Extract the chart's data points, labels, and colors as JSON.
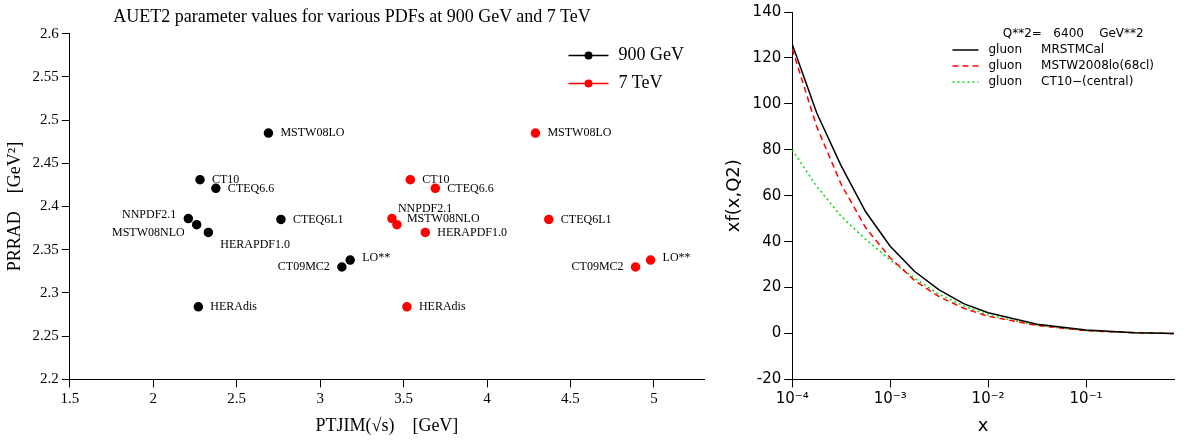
{
  "chart_data": [
    {
      "type": "scatter",
      "title": "AUET2 parameter values for various PDFs at 900 GeV and 7 TeV",
      "xlabel": "PTJIM(√s)    [GeV]",
      "ylabel": "PRRAD    [GeV²]",
      "xlim": [
        1.5,
        5.3
      ],
      "xticks": [
        1.5,
        2,
        2.5,
        3,
        3.5,
        4,
        4.5,
        5
      ],
      "ylim": [
        2.2,
        2.6
      ],
      "yticks": [
        2.2,
        2.25,
        2.3,
        2.35,
        2.4,
        2.45,
        2.5,
        2.55,
        2.6
      ],
      "legend": "top right",
      "marker": "circle",
      "series": [
        {
          "name": "900 GeV",
          "color": "#000000",
          "x": [
            2.69,
            2.28,
            2.375,
            2.21,
            2.26,
            2.33,
            2.765,
            3.18,
            3.13,
            2.27
          ],
          "values": [
            2.485,
            2.431,
            2.421,
            2.386,
            2.379,
            2.37,
            2.385,
            2.338,
            2.33,
            2.284
          ]
        },
        {
          "name": "7 TeV",
          "color": "#ff0000",
          "x": [
            4.29,
            3.54,
            3.69,
            3.43,
            3.46,
            3.63,
            4.37,
            4.98,
            4.89,
            3.52
          ],
          "values": [
            2.485,
            2.431,
            2.421,
            2.386,
            2.379,
            2.37,
            2.385,
            2.338,
            2.33,
            2.284
          ]
        }
      ],
      "annotations": [
        {
          "text": "MSTW08LO",
          "x": 2.69,
          "y": 2.485
        },
        {
          "text": "CT10",
          "x": 2.28,
          "y": 2.431
        },
        {
          "text": "CTEQ6.6",
          "x": 2.375,
          "y": 2.421
        },
        {
          "text": "NNPDF2.1",
          "x": 2.21,
          "y": 2.386
        },
        {
          "text": "MSTW08NLO",
          "x": 2.26,
          "y": 2.379
        },
        {
          "text": "HERAPDF1.0",
          "x": 2.33,
          "y": 2.37
        },
        {
          "text": "CTEQ6L1",
          "x": 2.765,
          "y": 2.385
        },
        {
          "text": "LO**",
          "x": 3.18,
          "y": 2.338
        },
        {
          "text": "CT09MC2",
          "x": 3.13,
          "y": 2.33
        },
        {
          "text": "HERAdis",
          "x": 2.27,
          "y": 2.284
        },
        {
          "text": "MSTW08LO",
          "x": 4.29,
          "y": 2.485
        },
        {
          "text": "CT10",
          "x": 3.54,
          "y": 2.431
        },
        {
          "text": "CTEQ6.6",
          "x": 3.69,
          "y": 2.421
        },
        {
          "text": "NNPDF2.1",
          "x": 3.43,
          "y": 2.386
        },
        {
          "text": "MSTW08NLO",
          "x": 3.46,
          "y": 2.379
        },
        {
          "text": "HERAPDF1.0",
          "x": 3.63,
          "y": 2.37
        },
        {
          "text": "CTEQ6L1",
          "x": 4.37,
          "y": 2.385
        },
        {
          "text": "LO**",
          "x": 4.98,
          "y": 2.338
        },
        {
          "text": "CT09MC2",
          "x": 4.89,
          "y": 2.33
        },
        {
          "text": "HERAdis",
          "x": 3.52,
          "y": 2.284
        }
      ]
    },
    {
      "type": "line",
      "xlabel": "x",
      "ylabel": "xf(x,Q2)",
      "log": "x",
      "marker": "none",
      "legend": "top right",
      "legend_title": "Q**2=   6400    GeV**2",
      "xlim": [
        0.0001,
        0.79
      ],
      "xticks": [
        {
          "value": 0.0001,
          "label": "10⁻⁴"
        },
        {
          "value": 0.001,
          "label": "10⁻³"
        },
        {
          "value": 0.01,
          "label": "10⁻²"
        },
        {
          "value": 0.1,
          "label": "10⁻¹"
        }
      ],
      "ylim": [
        -20,
        140
      ],
      "yticks": [
        -20,
        0,
        20,
        40,
        60,
        80,
        100,
        120,
        140
      ],
      "x": [
        0.0001,
        0.000178,
        0.000316,
        0.000562,
        0.001,
        0.00178,
        0.00316,
        0.00562,
        0.01,
        0.0316,
        0.1,
        0.316,
        0.79
      ],
      "series": [
        {
          "name": "gluon     MRSTMCal",
          "color": "#000000",
          "line_style": "solid",
          "values": [
            126,
            96,
            73,
            53,
            38,
            27,
            19,
            13,
            9,
            4,
            1.5,
            0.3,
            0
          ]
        },
        {
          "name": "gluon     MSTW2008lo(68cl)",
          "color": "#ff0000",
          "line_style": "dashed",
          "values": [
            124,
            90,
            65,
            46,
            33,
            23,
            16,
            11,
            7.5,
            3.5,
            1.2,
            0.3,
            0
          ]
        },
        {
          "name": "gluon     CT10−(central)",
          "color": "#00dd00",
          "line_style": "dotted",
          "values": [
            80,
            64,
            51,
            41,
            32,
            24,
            17,
            12,
            8,
            3.5,
            1.2,
            0.3,
            0
          ]
        }
      ]
    }
  ]
}
